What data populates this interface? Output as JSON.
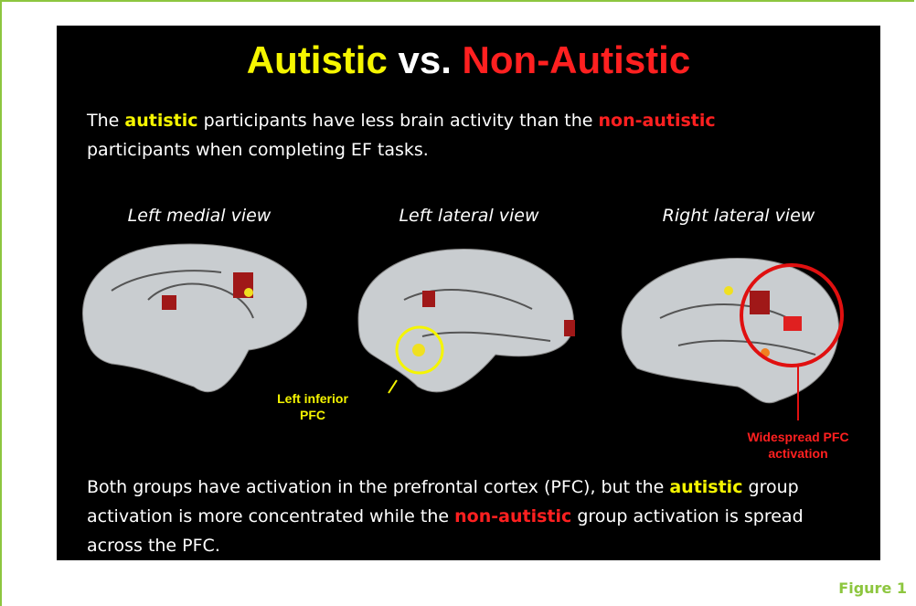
{
  "slide": {
    "title": [
      "Autistic",
      "vs.",
      "Non-Autistic"
    ],
    "intro": [
      "The",
      "autistic",
      "participants have less brain activity than the",
      "non-autistic",
      "participants when completing EF tasks."
    ],
    "views": [
      "Left medial view",
      "Left lateral view",
      "Right lateral view"
    ],
    "annotation_left": [
      "Left inferior",
      "PFC"
    ],
    "annotation_right": [
      "Widespread PFC",
      "activation"
    ],
    "summary": [
      "Both groups have activation in the prefrontal cortex (PFC), but the",
      "autistic",
      "group activation is more concentrated while the",
      "non-autistic",
      "group activation is spread across the PFC."
    ]
  },
  "caption": "Figure 1"
}
